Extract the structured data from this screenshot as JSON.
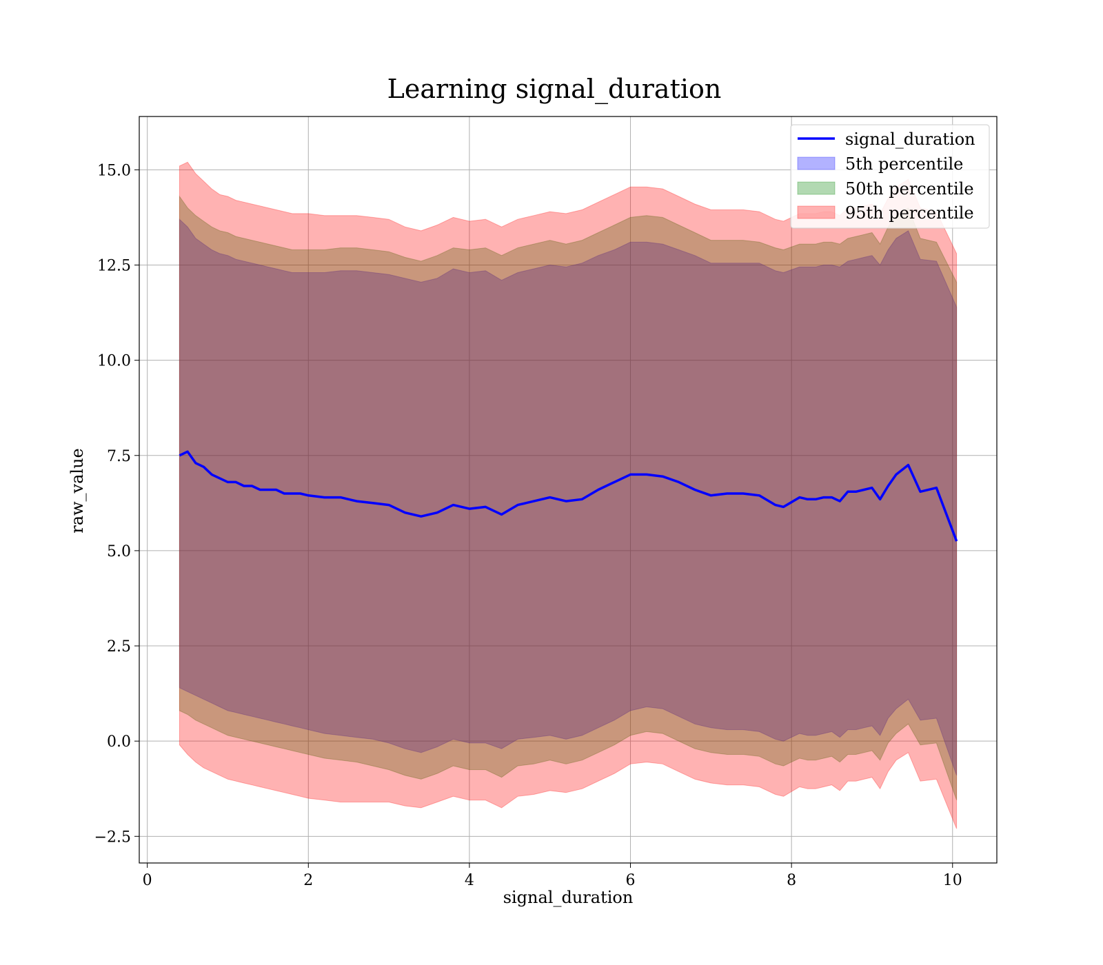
{
  "colors": {
    "line": "#0000ff",
    "band_5th": "#0000ff",
    "band_50th": "#008000",
    "band_95th": "#ff0000",
    "grid": "#b0b0b0",
    "legend_border": "#cccccc"
  },
  "chart_data": {
    "type": "line",
    "title": "Learning signal_duration",
    "xlabel": "signal_duration",
    "ylabel": "raw_value",
    "xlim": [
      -0.1,
      10.55
    ],
    "ylim": [
      -3.2,
      16.4
    ],
    "x_ticks": [
      0,
      2,
      4,
      6,
      8,
      10
    ],
    "x_tick_labels": [
      "0",
      "2",
      "4",
      "6",
      "8",
      "10"
    ],
    "y_ticks": [
      -2.5,
      0.0,
      2.5,
      5.0,
      7.5,
      10.0,
      12.5,
      15.0
    ],
    "y_tick_labels": [
      "−2.5",
      "0.0",
      "2.5",
      "5.0",
      "7.5",
      "10.0",
      "12.5",
      "15.0"
    ],
    "grid": true,
    "legend_position": "top-right",
    "legend": [
      "signal_duration",
      "5th percentile",
      "50th percentile",
      "95th percentile"
    ],
    "x": [
      0.4,
      0.5,
      0.6,
      0.7,
      0.8,
      0.9,
      1.0,
      1.1,
      1.2,
      1.3,
      1.4,
      1.5,
      1.6,
      1.7,
      1.8,
      1.9,
      2.0,
      2.2,
      2.4,
      2.6,
      2.8,
      3.0,
      3.2,
      3.4,
      3.6,
      3.8,
      4.0,
      4.2,
      4.4,
      4.6,
      4.8,
      5.0,
      5.2,
      5.4,
      5.6,
      5.8,
      6.0,
      6.2,
      6.4,
      6.6,
      6.8,
      7.0,
      7.2,
      7.4,
      7.6,
      7.8,
      7.9,
      8.1,
      8.2,
      8.3,
      8.4,
      8.5,
      8.6,
      8.7,
      8.8,
      8.9,
      9.0,
      9.1,
      9.2,
      9.3,
      9.45,
      9.6,
      9.8,
      10.05
    ],
    "series": [
      {
        "name": "signal_duration",
        "values": [
          7.5,
          7.6,
          7.3,
          7.2,
          7.0,
          6.9,
          6.8,
          6.8,
          6.7,
          6.7,
          6.6,
          6.6,
          6.6,
          6.5,
          6.5,
          6.5,
          6.45,
          6.4,
          6.4,
          6.3,
          6.25,
          6.2,
          6.0,
          5.9,
          6.0,
          6.2,
          6.1,
          6.15,
          5.95,
          6.2,
          6.3,
          6.4,
          6.3,
          6.35,
          6.6,
          6.8,
          7.0,
          7.0,
          6.95,
          6.8,
          6.6,
          6.45,
          6.5,
          6.5,
          6.45,
          6.2,
          6.15,
          6.4,
          6.35,
          6.35,
          6.4,
          6.4,
          6.3,
          6.55,
          6.55,
          6.6,
          6.65,
          6.35,
          6.7,
          7.0,
          7.25,
          6.55,
          6.65,
          5.25
        ]
      }
    ],
    "bands": [
      {
        "name": "5th percentile",
        "upper": [
          13.7,
          13.5,
          13.2,
          13.05,
          12.9,
          12.8,
          12.75,
          12.65,
          12.6,
          12.55,
          12.5,
          12.45,
          12.4,
          12.35,
          12.3,
          12.3,
          12.3,
          12.3,
          12.35,
          12.35,
          12.3,
          12.25,
          12.15,
          12.05,
          12.15,
          12.4,
          12.3,
          12.35,
          12.1,
          12.3,
          12.4,
          12.5,
          12.45,
          12.55,
          12.75,
          12.9,
          13.1,
          13.1,
          13.05,
          12.9,
          12.75,
          12.55,
          12.55,
          12.55,
          12.55,
          12.35,
          12.3,
          12.45,
          12.45,
          12.45,
          12.5,
          12.5,
          12.45,
          12.6,
          12.65,
          12.7,
          12.75,
          12.5,
          12.9,
          13.2,
          13.4,
          12.65,
          12.6,
          11.4
        ],
        "lower": [
          1.4,
          1.3,
          1.2,
          1.1,
          1.0,
          0.9,
          0.8,
          0.75,
          0.7,
          0.65,
          0.6,
          0.55,
          0.5,
          0.45,
          0.4,
          0.35,
          0.3,
          0.2,
          0.15,
          0.1,
          0.05,
          -0.05,
          -0.2,
          -0.3,
          -0.15,
          0.05,
          -0.05,
          -0.05,
          -0.2,
          0.05,
          0.1,
          0.15,
          0.05,
          0.15,
          0.35,
          0.55,
          0.8,
          0.9,
          0.85,
          0.65,
          0.45,
          0.35,
          0.3,
          0.3,
          0.25,
          0.05,
          0.0,
          0.2,
          0.15,
          0.15,
          0.2,
          0.25,
          0.1,
          0.3,
          0.3,
          0.35,
          0.4,
          0.15,
          0.6,
          0.85,
          1.1,
          0.55,
          0.6,
          -0.9
        ]
      },
      {
        "name": "50th percentile",
        "upper": [
          14.3,
          14.0,
          13.8,
          13.65,
          13.5,
          13.4,
          13.35,
          13.25,
          13.2,
          13.15,
          13.1,
          13.05,
          13.0,
          12.95,
          12.9,
          12.9,
          12.9,
          12.9,
          12.95,
          12.95,
          12.9,
          12.85,
          12.7,
          12.6,
          12.75,
          12.95,
          12.9,
          12.95,
          12.75,
          12.95,
          13.05,
          13.15,
          13.05,
          13.15,
          13.35,
          13.55,
          13.75,
          13.8,
          13.75,
          13.55,
          13.35,
          13.15,
          13.15,
          13.15,
          13.1,
          12.95,
          12.9,
          13.05,
          13.05,
          13.05,
          13.1,
          13.1,
          13.05,
          13.2,
          13.25,
          13.3,
          13.35,
          13.05,
          13.5,
          13.8,
          14.0,
          13.2,
          13.1,
          12.05
        ],
        "lower": [
          0.8,
          0.7,
          0.55,
          0.45,
          0.35,
          0.25,
          0.15,
          0.1,
          0.05,
          0.0,
          -0.05,
          -0.1,
          -0.15,
          -0.2,
          -0.25,
          -0.3,
          -0.35,
          -0.45,
          -0.5,
          -0.55,
          -0.65,
          -0.75,
          -0.9,
          -1.0,
          -0.85,
          -0.65,
          -0.75,
          -0.75,
          -0.95,
          -0.65,
          -0.6,
          -0.5,
          -0.6,
          -0.5,
          -0.3,
          -0.1,
          0.15,
          0.25,
          0.2,
          0.0,
          -0.2,
          -0.3,
          -0.35,
          -0.35,
          -0.4,
          -0.6,
          -0.65,
          -0.45,
          -0.5,
          -0.5,
          -0.45,
          -0.4,
          -0.55,
          -0.35,
          -0.35,
          -0.3,
          -0.25,
          -0.5,
          -0.05,
          0.2,
          0.45,
          -0.1,
          -0.05,
          -1.55
        ]
      },
      {
        "name": "95th percentile",
        "upper": [
          15.1,
          15.2,
          14.9,
          14.7,
          14.5,
          14.35,
          14.3,
          14.2,
          14.15,
          14.1,
          14.05,
          14.0,
          13.95,
          13.9,
          13.85,
          13.85,
          13.85,
          13.8,
          13.8,
          13.8,
          13.75,
          13.7,
          13.5,
          13.4,
          13.55,
          13.75,
          13.65,
          13.7,
          13.5,
          13.7,
          13.8,
          13.9,
          13.85,
          13.95,
          14.15,
          14.35,
          14.55,
          14.55,
          14.5,
          14.3,
          14.1,
          13.95,
          13.95,
          13.95,
          13.9,
          13.7,
          13.65,
          13.85,
          13.85,
          13.85,
          13.9,
          13.9,
          13.8,
          14.0,
          14.0,
          14.05,
          14.1,
          13.85,
          14.25,
          14.55,
          14.75,
          14.0,
          13.9,
          12.8
        ],
        "lower": [
          -0.1,
          -0.35,
          -0.55,
          -0.7,
          -0.8,
          -0.9,
          -1.0,
          -1.05,
          -1.1,
          -1.15,
          -1.2,
          -1.25,
          -1.3,
          -1.35,
          -1.4,
          -1.45,
          -1.5,
          -1.55,
          -1.6,
          -1.6,
          -1.6,
          -1.6,
          -1.7,
          -1.75,
          -1.6,
          -1.45,
          -1.55,
          -1.55,
          -1.75,
          -1.45,
          -1.4,
          -1.3,
          -1.35,
          -1.25,
          -1.05,
          -0.85,
          -0.6,
          -0.55,
          -0.6,
          -0.8,
          -1.0,
          -1.1,
          -1.15,
          -1.15,
          -1.2,
          -1.4,
          -1.45,
          -1.2,
          -1.25,
          -1.25,
          -1.2,
          -1.15,
          -1.3,
          -1.05,
          -1.05,
          -1.0,
          -0.95,
          -1.25,
          -0.8,
          -0.5,
          -0.3,
          -1.05,
          -1.0,
          -2.3
        ]
      }
    ]
  }
}
